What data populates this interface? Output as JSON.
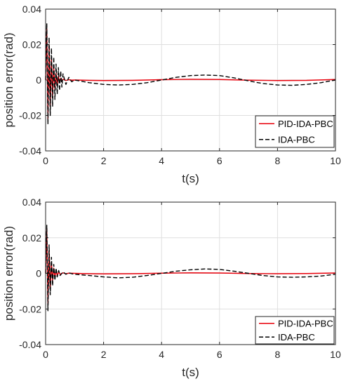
{
  "chart_data": [
    {
      "type": "line",
      "xlabel": "t(s)",
      "ylabel": "position error(rad)",
      "xlim": [
        0,
        10
      ],
      "ylim": [
        -0.04,
        0.04
      ],
      "x_ticks": [
        "0",
        "2",
        "4",
        "6",
        "8",
        "10"
      ],
      "y_ticks": [
        "-0.04",
        "-0.02",
        "0",
        "0.02",
        "0.04"
      ],
      "grid": true,
      "legend_position": "bottom-right",
      "series": [
        {
          "name": "PID-IDA-PBC",
          "color": "#e8000b",
          "style": "solid",
          "x": [
            0,
            0.04,
            0.08,
            0.12,
            0.16,
            0.2,
            0.24,
            0.28,
            0.32,
            0.36,
            0.4,
            0.44,
            0.48,
            0.52,
            0.56,
            0.6,
            0.7,
            0.8,
            0.9,
            1.0,
            1.5,
            2.0,
            3.0,
            4.0,
            5.0,
            6.0,
            7.0,
            8.0,
            9.0,
            10.0
          ],
          "y": [
            0.0,
            0.029,
            -0.022,
            0.02,
            -0.015,
            0.012,
            -0.009,
            0.007,
            -0.005,
            0.004,
            -0.003,
            0.0022,
            -0.0015,
            0.001,
            -0.0007,
            0.0005,
            -0.0003,
            0.0002,
            -0.0001,
            0.0,
            -0.0002,
            -0.0003,
            -0.0002,
            0.0002,
            0.0004,
            0.0003,
            -0.0001,
            -0.0003,
            -0.0002,
            0.0003
          ]
        },
        {
          "name": "IDA-PBC",
          "color": "#000000",
          "style": "dashed",
          "x": [
            0,
            0.04,
            0.08,
            0.12,
            0.16,
            0.2,
            0.24,
            0.28,
            0.32,
            0.36,
            0.4,
            0.44,
            0.48,
            0.52,
            0.56,
            0.6,
            0.7,
            0.8,
            0.9,
            1.0,
            1.5,
            2.0,
            2.5,
            3.0,
            3.5,
            4.0,
            4.5,
            5.0,
            5.5,
            6.0,
            6.5,
            7.0,
            7.5,
            8.0,
            8.5,
            9.0,
            9.5,
            10.0
          ],
          "y": [
            0.0,
            0.032,
            -0.025,
            0.024,
            -0.02,
            0.018,
            -0.015,
            0.013,
            -0.011,
            0.009,
            -0.008,
            0.007,
            -0.006,
            0.005,
            -0.004,
            0.0035,
            -0.0025,
            0.0015,
            -0.001,
            0.0,
            -0.0015,
            -0.0025,
            -0.0028,
            -0.0025,
            -0.0015,
            0.0,
            0.0015,
            0.0025,
            0.0028,
            0.0025,
            0.0012,
            -0.0005,
            -0.002,
            -0.0028,
            -0.003,
            -0.0025,
            -0.0015,
            0.0
          ]
        }
      ]
    },
    {
      "type": "line",
      "xlabel": "t(s)",
      "ylabel": "position error(rad)",
      "xlim": [
        0,
        10
      ],
      "ylim": [
        -0.04,
        0.04
      ],
      "x_ticks": [
        "0",
        "2",
        "4",
        "6",
        "8",
        "10"
      ],
      "y_ticks": [
        "-0.04",
        "-0.02",
        "0",
        "0.02",
        "0.04"
      ],
      "grid": true,
      "legend_position": "bottom-right",
      "series": [
        {
          "name": "PID-IDA-PBC",
          "color": "#e8000b",
          "style": "solid",
          "x": [
            0,
            0.04,
            0.08,
            0.12,
            0.16,
            0.2,
            0.24,
            0.28,
            0.32,
            0.36,
            0.4,
            0.45,
            0.5,
            0.6,
            0.7,
            0.8,
            1.0,
            1.5,
            2.0,
            3.0,
            4.0,
            5.0,
            6.0,
            7.0,
            8.0,
            9.0,
            10.0
          ],
          "y": [
            0.0,
            0.025,
            -0.018,
            0.013,
            -0.009,
            0.006,
            -0.004,
            0.003,
            -0.002,
            0.0015,
            -0.001,
            0.0007,
            -0.0005,
            0.0003,
            -0.0002,
            0.0001,
            0.0,
            -0.0002,
            -0.0003,
            -0.0002,
            0.0001,
            0.0003,
            0.0002,
            -0.0001,
            -0.0002,
            -0.0001,
            0.0002
          ]
        },
        {
          "name": "IDA-PBC",
          "color": "#000000",
          "style": "dashed",
          "x": [
            0,
            0.04,
            0.08,
            0.12,
            0.16,
            0.2,
            0.24,
            0.28,
            0.32,
            0.36,
            0.4,
            0.45,
            0.5,
            0.6,
            0.7,
            0.8,
            0.9,
            1.0,
            1.5,
            2.0,
            2.5,
            3.0,
            3.5,
            4.0,
            4.5,
            5.0,
            5.5,
            6.0,
            6.5,
            7.0,
            7.5,
            8.0,
            8.5,
            9.0,
            9.5,
            10.0
          ],
          "y": [
            0.0,
            0.027,
            -0.021,
            0.016,
            -0.012,
            0.009,
            -0.007,
            0.005,
            -0.004,
            0.003,
            -0.002,
            0.0016,
            -0.0012,
            0.0008,
            -0.0005,
            0.0003,
            -0.0002,
            -0.0005,
            -0.0012,
            -0.002,
            -0.0025,
            -0.0022,
            -0.0012,
            0.0,
            0.0012,
            0.002,
            0.0025,
            0.0022,
            0.0012,
            0.0,
            -0.0012,
            -0.002,
            -0.0022,
            -0.002,
            -0.0015,
            -0.0005
          ]
        }
      ]
    }
  ]
}
